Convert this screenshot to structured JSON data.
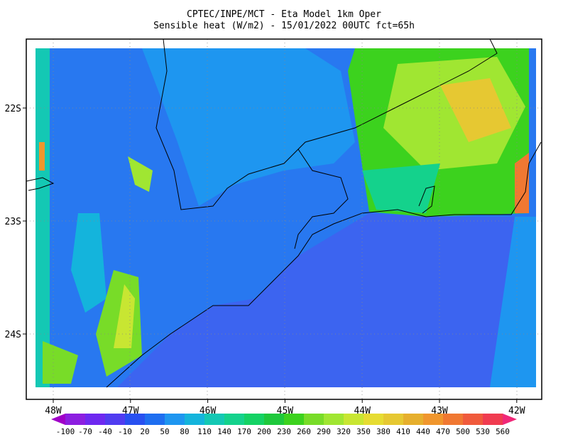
{
  "title": [
    "CPTEC/INPE/MCT -  Eta Model 1km Oper",
    "Sensible heat (W/m2) - 15/01/2022 00UTC fct=65h"
  ],
  "lon_labels": [
    "48W",
    "47W",
    "46W",
    "45W",
    "44W",
    "43W",
    "42W"
  ],
  "lat_labels": [
    "22S",
    "23S",
    "24S"
  ],
  "colorbar": {
    "labels": [
      -100,
      -70,
      -40,
      -10,
      20,
      50,
      80,
      110,
      140,
      170,
      200,
      230,
      260,
      290,
      320,
      350,
      380,
      410,
      440,
      470,
      500,
      530,
      560
    ],
    "colors": [
      "#a000c8",
      "#8c1ee0",
      "#6e28f0",
      "#503cf0",
      "#2850f0",
      "#1e6ef0",
      "#1e96f0",
      "#14b4dc",
      "#14c8b4",
      "#14d28c",
      "#14d264",
      "#1ec83c",
      "#3cd21e",
      "#78dc28",
      "#a0e632",
      "#c8e632",
      "#e6dc32",
      "#e6c832",
      "#e6af2d",
      "#f0962d",
      "#f07832",
      "#f05a3c",
      "#f03c50",
      "#f02878"
    ]
  }
}
